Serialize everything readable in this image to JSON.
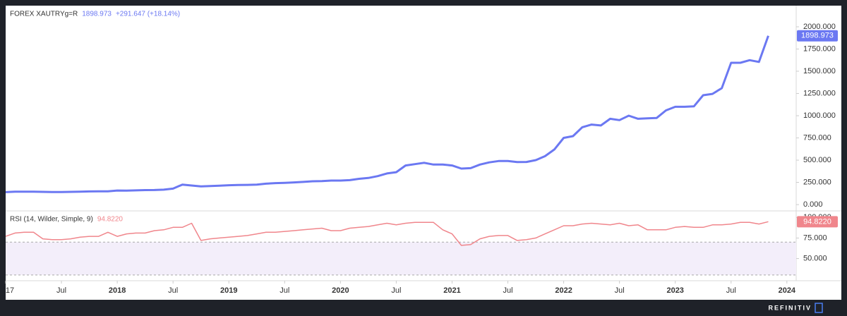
{
  "chart_data": [
    {
      "type": "line",
      "title": "FOREX XAUTRYg=R",
      "change_label": "+291.647 (+18.14%)",
      "x": [
        "2017-01",
        "2017-02",
        "2017-03",
        "2017-04",
        "2017-05",
        "2017-06",
        "2017-07",
        "2017-08",
        "2017-09",
        "2017-10",
        "2017-11",
        "2017-12",
        "2018-01",
        "2018-02",
        "2018-03",
        "2018-04",
        "2018-05",
        "2018-06",
        "2018-07",
        "2018-08",
        "2018-09",
        "2018-10",
        "2018-11",
        "2018-12",
        "2019-01",
        "2019-02",
        "2019-03",
        "2019-04",
        "2019-05",
        "2019-06",
        "2019-07",
        "2019-08",
        "2019-09",
        "2019-10",
        "2019-11",
        "2019-12",
        "2020-01",
        "2020-02",
        "2020-03",
        "2020-04",
        "2020-05",
        "2020-06",
        "2020-07",
        "2020-08",
        "2020-09",
        "2020-10",
        "2020-11",
        "2020-12",
        "2021-01",
        "2021-02",
        "2021-03",
        "2021-04",
        "2021-05",
        "2021-06",
        "2021-07",
        "2021-08",
        "2021-09",
        "2021-10",
        "2021-11",
        "2021-12",
        "2022-01",
        "2022-02",
        "2022-03",
        "2022-04",
        "2022-05",
        "2022-06",
        "2022-07",
        "2022-08",
        "2022-09",
        "2022-10",
        "2022-11",
        "2022-12",
        "2023-01",
        "2023-02",
        "2023-03",
        "2023-04",
        "2023-05",
        "2023-06",
        "2023-07",
        "2023-08",
        "2023-09",
        "2023-10",
        "2023-11"
      ],
      "xlim": [
        "2017-01",
        "2024-02"
      ],
      "series": [
        {
          "color": "#6b78f2",
          "values": [
            140,
            145,
            146,
            145,
            143,
            142,
            142,
            143,
            145,
            148,
            150,
            150,
            158,
            157,
            160,
            163,
            164,
            168,
            180,
            225,
            215,
            205,
            208,
            212,
            218,
            220,
            222,
            225,
            235,
            242,
            245,
            250,
            255,
            262,
            265,
            270,
            270,
            275,
            290,
            300,
            320,
            350,
            365,
            440,
            455,
            470,
            450,
            450,
            440,
            405,
            410,
            450,
            475,
            490,
            490,
            478,
            480,
            500,
            545,
            620,
            750,
            770,
            870,
            900,
            890,
            965,
            950,
            1000,
            965,
            970,
            975,
            1060,
            1100,
            1100,
            1105,
            1230,
            1245,
            1310,
            1595,
            1595,
            1625,
            1605,
            1898.973
          ]
        }
      ],
      "ylim": [
        -63,
        2238
      ],
      "yticks": [
        {
          "value": 0,
          "label": "0.000"
        },
        {
          "value": 250,
          "label": "250.000"
        },
        {
          "value": 500,
          "label": "500.000"
        },
        {
          "value": 750,
          "label": "750.000"
        },
        {
          "value": 1000,
          "label": "1000.000"
        },
        {
          "value": 1250,
          "label": "1250.000"
        },
        {
          "value": 1500,
          "label": "1500.000"
        },
        {
          "value": 1750,
          "label": "1750.000"
        },
        {
          "value": 2000,
          "label": "2000.000"
        }
      ]
    },
    {
      "type": "line",
      "title": "RSI (14, Wilder, Simple, 9)",
      "last_value_label": "94.8220",
      "x": [
        "2017-01",
        "2017-02",
        "2017-03",
        "2017-04",
        "2017-05",
        "2017-06",
        "2017-07",
        "2017-08",
        "2017-09",
        "2017-10",
        "2017-11",
        "2017-12",
        "2018-01",
        "2018-02",
        "2018-03",
        "2018-04",
        "2018-05",
        "2018-06",
        "2018-07",
        "2018-08",
        "2018-09",
        "2018-10",
        "2018-11",
        "2018-12",
        "2019-01",
        "2019-02",
        "2019-03",
        "2019-04",
        "2019-05",
        "2019-06",
        "2019-07",
        "2019-08",
        "2019-09",
        "2019-10",
        "2019-11",
        "2019-12",
        "2020-01",
        "2020-02",
        "2020-03",
        "2020-04",
        "2020-05",
        "2020-06",
        "2020-07",
        "2020-08",
        "2020-09",
        "2020-10",
        "2020-11",
        "2020-12",
        "2021-01",
        "2021-02",
        "2021-03",
        "2021-04",
        "2021-05",
        "2021-06",
        "2021-07",
        "2021-08",
        "2021-09",
        "2021-10",
        "2021-11",
        "2021-12",
        "2022-01",
        "2022-02",
        "2022-03",
        "2022-04",
        "2022-05",
        "2022-06",
        "2022-07",
        "2022-08",
        "2022-09",
        "2022-10",
        "2022-11",
        "2022-12",
        "2023-01",
        "2023-02",
        "2023-03",
        "2023-04",
        "2023-05",
        "2023-06",
        "2023-07",
        "2023-08",
        "2023-09",
        "2023-10",
        "2023-11"
      ],
      "xlim": [
        "2017-01",
        "2024-02"
      ],
      "xticks": [
        {
          "value": "2017-01",
          "label": "17"
        },
        {
          "value": "2017-07",
          "label": "Jul"
        },
        {
          "value": "2018-01",
          "label": "2018"
        },
        {
          "value": "2018-07",
          "label": "Jul"
        },
        {
          "value": "2019-01",
          "label": "2019"
        },
        {
          "value": "2019-07",
          "label": "Jul"
        },
        {
          "value": "2020-01",
          "label": "2020"
        },
        {
          "value": "2020-07",
          "label": "Jul"
        },
        {
          "value": "2021-01",
          "label": "2021"
        },
        {
          "value": "2021-07",
          "label": "Jul"
        },
        {
          "value": "2022-01",
          "label": "2022"
        },
        {
          "value": "2022-07",
          "label": "Jul"
        },
        {
          "value": "2023-01",
          "label": "2023"
        },
        {
          "value": "2023-07",
          "label": "Jul"
        },
        {
          "value": "2024-01",
          "label": "2024"
        }
      ],
      "series": [
        {
          "color": "#f0868c",
          "values": [
            77,
            81,
            82,
            82,
            74,
            73,
            73,
            74,
            76,
            77,
            77,
            82,
            77,
            80,
            81,
            81,
            84,
            85,
            88,
            88,
            93,
            72,
            74,
            75,
            76,
            77,
            78,
            80,
            82,
            82,
            83,
            84,
            85,
            86,
            87,
            84,
            84,
            87,
            88,
            89,
            91,
            93,
            91,
            93,
            94,
            94,
            94,
            85,
            80,
            66,
            67,
            74,
            77,
            78,
            78,
            72,
            73,
            75,
            80,
            85,
            90,
            90,
            92,
            93,
            92,
            91,
            93,
            90,
            91,
            85,
            85,
            85,
            88,
            89,
            88,
            88,
            91,
            91,
            92,
            94,
            94,
            92,
            94.822
          ]
        }
      ],
      "bands": [
        30,
        70
      ],
      "band_color": "#f3eefa",
      "ylim": [
        23,
        108
      ],
      "yticks": [
        {
          "value": 50,
          "label": "50.000"
        },
        {
          "value": 75,
          "label": "75.000"
        },
        {
          "value": 100,
          "label": "100.000"
        }
      ]
    }
  ],
  "footer": {
    "brand": "REFINITIV"
  }
}
